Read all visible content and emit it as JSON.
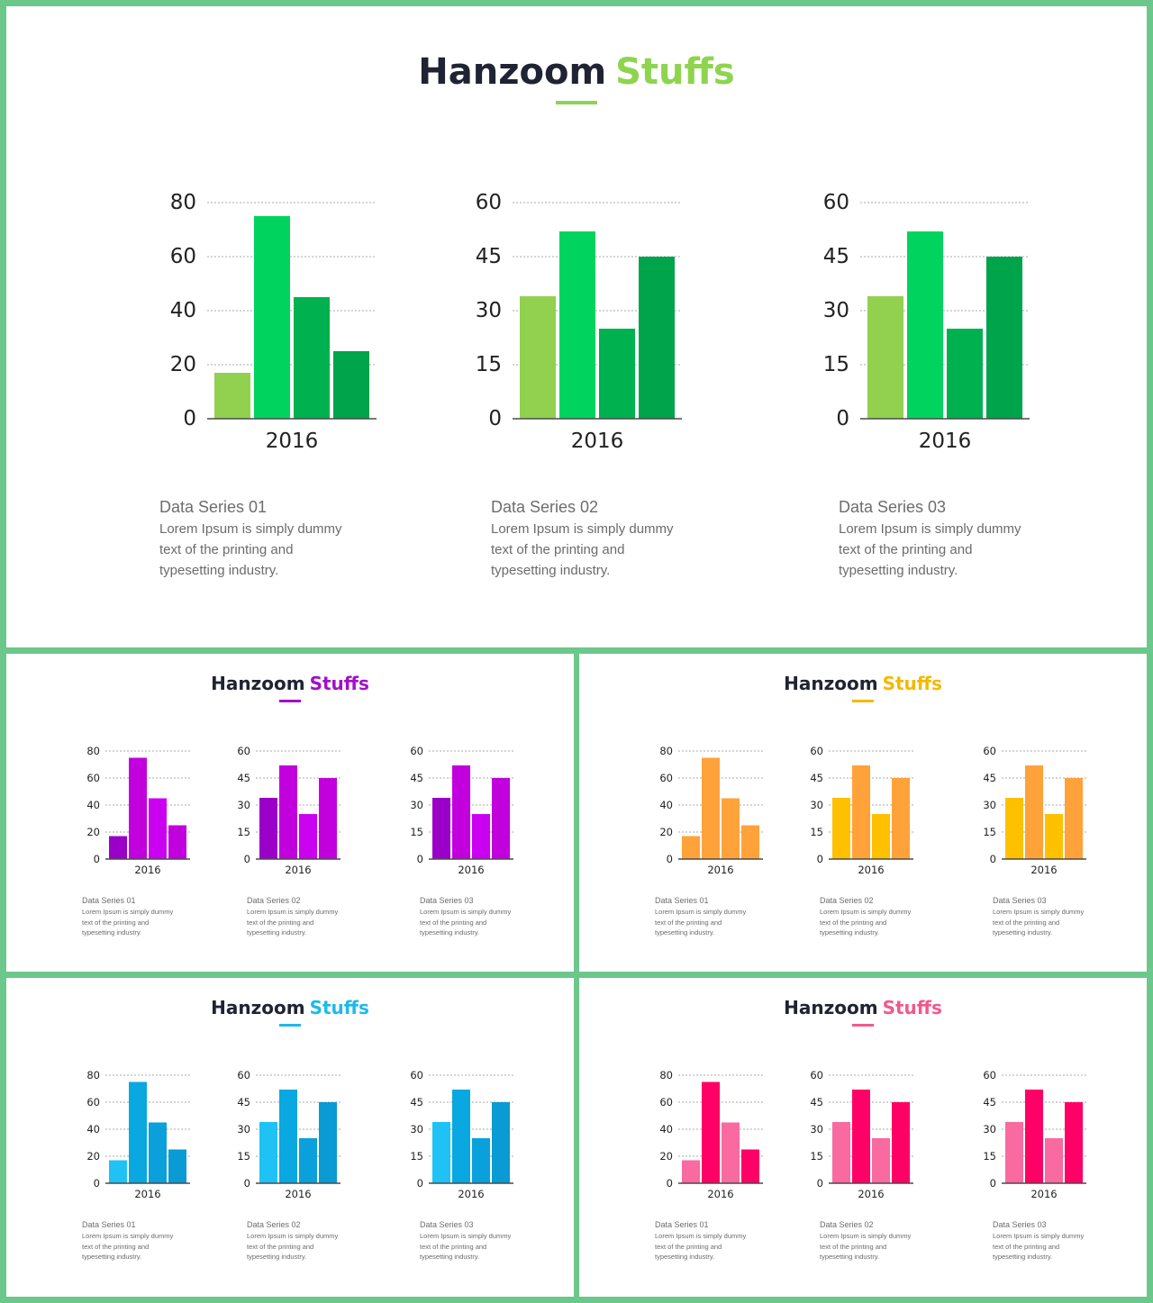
{
  "slides": [
    {
      "title_part1": "Hanzoom",
      "title_part2": "Stuffs",
      "accent": "#8ed44f",
      "series_colors": [
        [
          "#92d050",
          "#00d45e",
          "#00b14f",
          "#00a44a"
        ],
        [
          "#92d050",
          "#00d45e",
          "#00b14f",
          "#00a44a"
        ],
        [
          "#92d050",
          "#00d45e",
          "#00b14f",
          "#00a44a"
        ]
      ],
      "items": [
        {
          "title": "Data Series 01",
          "text": [
            "Lorem Ipsum is simply dummy",
            "text of the printing and",
            "typesetting industry."
          ]
        },
        {
          "title": "Data Series 02",
          "text": [
            "Lorem Ipsum is simply dummy",
            "text of the printing and",
            "typesetting industry."
          ]
        },
        {
          "title": "Data Series 03",
          "text": [
            "Lorem Ipsum is simply dummy",
            "text of the printing and",
            "typesetting industry."
          ]
        }
      ]
    },
    {
      "title_part1": "Hanzoom",
      "title_part2": "Stuffs",
      "accent": "#a210c8",
      "series_colors": [
        [
          "#9b00c8",
          "#c100dd",
          "#cc00f0",
          "#c100dd"
        ],
        [
          "#9b00c8",
          "#c100dd",
          "#cc00f0",
          "#c100dd"
        ],
        [
          "#9b00c8",
          "#c100dd",
          "#cc00f0",
          "#c100dd"
        ]
      ],
      "items": [
        {
          "title": "Data Series 01",
          "text": [
            "Lorem Ipsum is simply dummy",
            "text of the printing and",
            "typesetting industry."
          ]
        },
        {
          "title": "Data Series 02",
          "text": [
            "Lorem Ipsum is simply dummy",
            "text of the printing and",
            "typesetting industry."
          ]
        },
        {
          "title": "Data Series 03",
          "text": [
            "Lorem Ipsum is simply dummy",
            "text of the printing and",
            "typesetting industry."
          ]
        }
      ]
    },
    {
      "title_part1": "Hanzoom",
      "title_part2": "Stuffs",
      "accent": "#f5b800",
      "series_colors": [
        [
          "#ffa23a",
          "#ffa23a",
          "#ffa23a",
          "#ffa23a"
        ],
        [
          "#ffc000",
          "#ffa23a",
          "#ffc000",
          "#ffa23a"
        ],
        [
          "#ffc000",
          "#ffa23a",
          "#ffc000",
          "#ffa23a"
        ]
      ],
      "items": [
        {
          "title": "Data Series 01",
          "text": [
            "Lorem Ipsum is simply dummy",
            "text of the printing and",
            "typesetting industry."
          ]
        },
        {
          "title": "Data Series 02",
          "text": [
            "Lorem Ipsum is simply dummy",
            "text of the printing and",
            "typesetting industry."
          ]
        },
        {
          "title": "Data Series 03",
          "text": [
            "Lorem Ipsum is simply dummy",
            "text of the printing and",
            "typesetting industry."
          ]
        }
      ]
    },
    {
      "title_part1": "Hanzoom",
      "title_part2": "Stuffs",
      "accent": "#1fb9ea",
      "series_colors": [
        [
          "#1fc2f5",
          "#09a8e0",
          "#0aa0db",
          "#0a9ad4"
        ],
        [
          "#1fc2f5",
          "#09a8e0",
          "#0aa0db",
          "#0a9ad4"
        ],
        [
          "#1fc2f5",
          "#09a8e0",
          "#0aa0db",
          "#0a9ad4"
        ]
      ],
      "items": [
        {
          "title": "Data Series 01",
          "text": [
            "Lorem Ipsum is simply dummy",
            "text of the printing and",
            "typesetting industry."
          ]
        },
        {
          "title": "Data Series 02",
          "text": [
            "Lorem Ipsum is simply dummy",
            "text of the printing and",
            "typesetting industry."
          ]
        },
        {
          "title": "Data Series 03",
          "text": [
            "Lorem Ipsum is simply dummy",
            "text of the printing and",
            "typesetting industry."
          ]
        }
      ]
    },
    {
      "title_part1": "Hanzoom",
      "title_part2": "Stuffs",
      "accent": "#f2588e",
      "series_colors": [
        [
          "#f96aa0",
          "#ff0066",
          "#f96aa0",
          "#ff0066"
        ],
        [
          "#f96aa0",
          "#ff0066",
          "#f96aa0",
          "#ff0066"
        ],
        [
          "#f96aa0",
          "#ff0066",
          "#f96aa0",
          "#ff0066"
        ]
      ],
      "items": [
        {
          "title": "Data Series 01",
          "text": [
            "Lorem Ipsum is simply dummy",
            "text of the printing and",
            "typesetting industry."
          ]
        },
        {
          "title": "Data Series 02",
          "text": [
            "Lorem Ipsum is simply dummy",
            "text of the printing and",
            "typesetting industry."
          ]
        },
        {
          "title": "Data Series 03",
          "text": [
            "Lorem Ipsum is simply dummy",
            "text of the printing and",
            "typesetting industry."
          ]
        }
      ]
    }
  ],
  "chart_data": [
    {
      "type": "bar",
      "categories": [
        "2016"
      ],
      "series": [
        {
          "values": [
            17
          ]
        },
        {
          "values": [
            75
          ]
        },
        {
          "values": [
            45
          ]
        },
        {
          "values": [
            25
          ]
        }
      ],
      "ylim": [
        0,
        80
      ],
      "yticks": [
        0,
        20,
        40,
        60,
        80
      ],
      "grid": true
    },
    {
      "type": "bar",
      "categories": [
        "2016"
      ],
      "series": [
        {
          "values": [
            34
          ]
        },
        {
          "values": [
            52
          ]
        },
        {
          "values": [
            25
          ]
        },
        {
          "values": [
            45
          ]
        }
      ],
      "ylim": [
        0,
        60
      ],
      "yticks": [
        0,
        15,
        30,
        45,
        60
      ],
      "grid": true
    },
    {
      "type": "bar",
      "categories": [
        "2016"
      ],
      "series": [
        {
          "values": [
            34
          ]
        },
        {
          "values": [
            52
          ]
        },
        {
          "values": [
            25
          ]
        },
        {
          "values": [
            45
          ]
        }
      ],
      "ylim": [
        0,
        60
      ],
      "yticks": [
        0,
        15,
        30,
        45,
        60
      ],
      "grid": true
    }
  ]
}
